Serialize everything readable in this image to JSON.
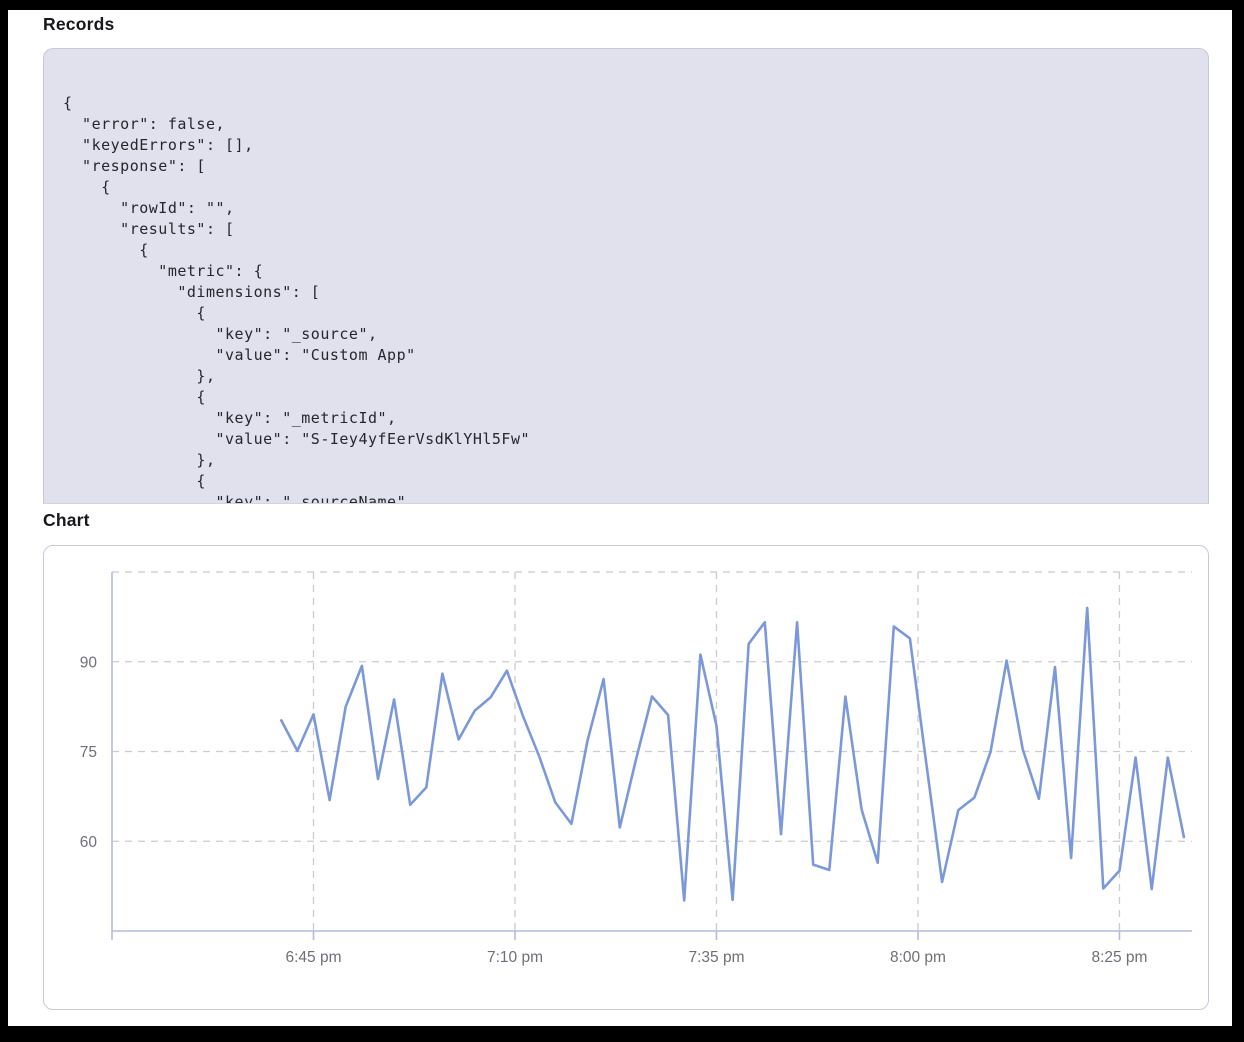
{
  "sections": {
    "records": {
      "title": "Records",
      "json_lines": [
        "{",
        "  \"error\": false,",
        "  \"keyedErrors\": [],",
        "  \"response\": [",
        "    {",
        "      \"rowId\": \"\",",
        "      \"results\": [",
        "        {",
        "          \"metric\": {",
        "            \"dimensions\": [",
        "              {",
        "                \"key\": \"_source\",",
        "                \"value\": \"Custom App\"",
        "              },",
        "              {",
        "                \"key\": \"_metricId\",",
        "                \"value\": \"S-Iey4yfEerVsdKlYHl5Fw\"",
        "              },",
        "              {",
        "                \"key\": \"_sourceName\","
      ]
    },
    "chart": {
      "title": "Chart"
    }
  },
  "colors": {
    "panel_bg": "#e1e1ee",
    "panel_border": "#c9c8d9",
    "axis_line": "#b4badf",
    "gridline": "#cbcbd0",
    "axis_label": "#6f6f79",
    "series_line": "#7b99d8"
  },
  "chart_data": {
    "type": "line",
    "title": "",
    "xlabel": "",
    "ylabel": "",
    "grid": "dashed",
    "legend": "none",
    "line_color": "#7b99d8",
    "x_labels": [
      "6:41 pm",
      "6:43 pm",
      "6:45 pm",
      "6:47 pm",
      "6:49 pm",
      "6:51 pm",
      "6:53 pm",
      "6:55 pm",
      "6:57 pm",
      "6:59 pm",
      "7:01 pm",
      "7:03 pm",
      "7:05 pm",
      "7:07 pm",
      "7:09 pm",
      "7:11 pm",
      "7:13 pm",
      "7:15 pm",
      "7:17 pm",
      "7:19 pm",
      "7:21 pm",
      "7:23 pm",
      "7:25 pm",
      "7:27 pm",
      "7:29 pm",
      "7:31 pm",
      "7:33 pm",
      "7:35 pm",
      "7:37 pm",
      "7:39 pm",
      "7:41 pm",
      "7:43 pm",
      "7:45 pm",
      "7:47 pm",
      "7:49 pm",
      "7:51 pm",
      "7:53 pm",
      "7:55 pm",
      "7:57 pm",
      "7:59 pm",
      "8:01 pm",
      "8:03 pm",
      "8:05 pm",
      "8:07 pm",
      "8:09 pm",
      "8:11 pm",
      "8:13 pm",
      "8:15 pm",
      "8:17 pm",
      "8:19 pm",
      "8:21 pm",
      "8:23 pm",
      "8:25 pm",
      "8:27 pm",
      "8:29 pm",
      "8:31 pm",
      "8:33 pm"
    ],
    "values": [
      80.2,
      75.1,
      81.2,
      66.9,
      82.5,
      89.3,
      70.4,
      83.7,
      66.1,
      69,
      88,
      77,
      81.8,
      84.1,
      88.5,
      80.9,
      74.2,
      66.5,
      62.9,
      76.8,
      87.1,
      62.3,
      73.6,
      84.2,
      81.1,
      50.1,
      91.2,
      79.3,
      50.2,
      93,
      96.6,
      61.2,
      96.6,
      56.1,
      55.2,
      84.2,
      65.3,
      56.4,
      95.9,
      93.9,
      73.4,
      53.2,
      65.2,
      67.3,
      74.9,
      90.2,
      75.4,
      67.1,
      89.1,
      57.2,
      99,
      52.1,
      55.1,
      74,
      52,
      74,
      60.7
    ],
    "x_axis": {
      "tick_labels": [
        "6:45 pm",
        "7:10 pm",
        "7:35 pm",
        "8:00 pm",
        "8:25 pm"
      ],
      "tick_minutes": [
        25,
        50,
        75,
        100,
        125
      ],
      "domain_minutes": [
        0,
        134
      ],
      "data_start_minute": 21,
      "data_step_minutes": 2
    },
    "y_axis": {
      "tick_labels": [
        "60",
        "75",
        "90"
      ],
      "tick_values": [
        60,
        75,
        90
      ],
      "gridline_values": [
        60,
        75,
        90,
        105
      ],
      "range": [
        45,
        105
      ]
    }
  }
}
